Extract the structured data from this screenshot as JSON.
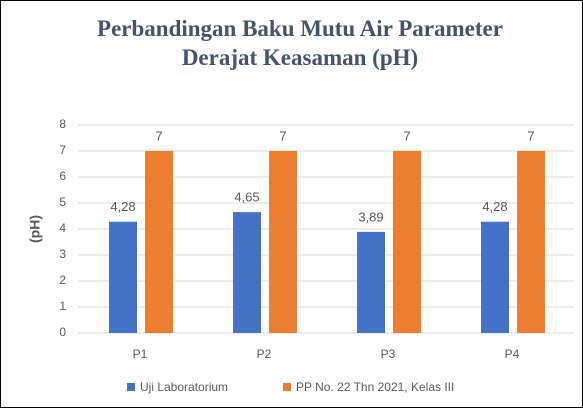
{
  "chart_data": {
    "type": "bar",
    "title": "Perbandingan Baku Mutu Air Parameter Derajat Keasaman (pH)",
    "y_label": "(pH)",
    "categories": [
      "P1",
      "P2",
      "P3",
      "P4"
    ],
    "series": [
      {
        "name": "Uji Laboratorium",
        "color": "#4472c4",
        "values": [
          4.28,
          4.65,
          3.89,
          4.28
        ],
        "value_labels": [
          "4,28",
          "4,65",
          "3,89",
          "4,28"
        ]
      },
      {
        "name": "PP No. 22 Thn 2021, Kelas III",
        "color": "#ed7d31",
        "values": [
          7,
          7,
          7,
          7
        ],
        "value_labels": [
          "7",
          "7",
          "7",
          "7"
        ]
      }
    ],
    "ylim": [
      0,
      8
    ],
    "yticks": [
      0,
      1,
      2,
      3,
      4,
      5,
      6,
      7,
      8
    ],
    "grid": true,
    "legend": "bottom"
  }
}
